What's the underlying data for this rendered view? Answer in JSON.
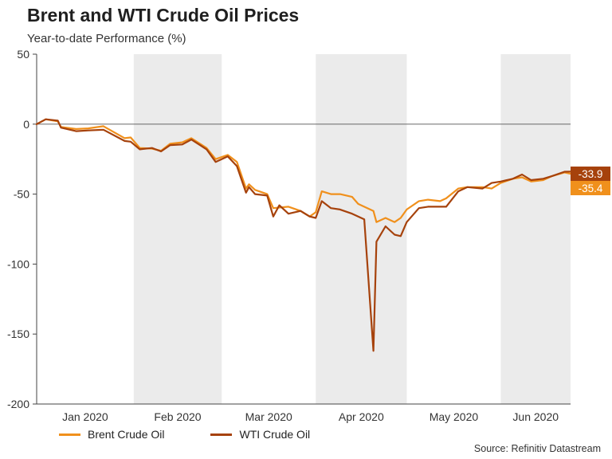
{
  "title": "Brent and WTI Crude Oil Prices",
  "subtitle": "Year-to-date Performance (%)",
  "source": "Source: Refinitiv Datastream",
  "colors": {
    "brent": "#f0901c",
    "wti": "#a6420c",
    "shade": "#ebebeb",
    "axis": "#444444"
  },
  "chart_data": {
    "type": "line",
    "title": "Brent and WTI Crude Oil Prices",
    "subtitle": "Year-to-date Performance (%)",
    "xlabel": "",
    "ylabel": "",
    "ylim": [
      -200,
      50
    ],
    "yticks": [
      50,
      0,
      -50,
      -100,
      -150,
      -200
    ],
    "xlim": [
      "2019-12-31",
      "2020-06-24"
    ],
    "month_labels": [
      "Jan 2020",
      "Feb 2020",
      "Mar 2020",
      "Apr 2020",
      "May 2020",
      "Jun 2020"
    ],
    "shaded_months": [
      "Feb 2020",
      "Apr 2020",
      "Jun 2020"
    ],
    "grid": false,
    "legend_position": "bottom",
    "series": [
      {
        "name": "Brent Crude Oil",
        "end_label": "-35.4",
        "points": [
          [
            "2019-12-31",
            0
          ],
          [
            "2020-01-03",
            3.5
          ],
          [
            "2020-01-07",
            2.0
          ],
          [
            "2020-01-08",
            -2.0
          ],
          [
            "2020-01-13",
            -3.5
          ],
          [
            "2020-01-17",
            -3.0
          ],
          [
            "2020-01-22",
            -1.5
          ],
          [
            "2020-01-29",
            -10.0
          ],
          [
            "2020-01-31",
            -9.5
          ],
          [
            "2020-02-03",
            -17.0
          ],
          [
            "2020-02-07",
            -17.5
          ],
          [
            "2020-02-10",
            -19.0
          ],
          [
            "2020-02-13",
            -14.0
          ],
          [
            "2020-02-17",
            -13.0
          ],
          [
            "2020-02-20",
            -10.0
          ],
          [
            "2020-02-25",
            -17.0
          ],
          [
            "2020-02-28",
            -25.0
          ],
          [
            "2020-03-03",
            -22.0
          ],
          [
            "2020-03-06",
            -27.0
          ],
          [
            "2020-03-09",
            -46.0
          ],
          [
            "2020-03-10",
            -43.0
          ],
          [
            "2020-03-12",
            -47.0
          ],
          [
            "2020-03-16",
            -50.0
          ],
          [
            "2020-03-18",
            -60.0
          ],
          [
            "2020-03-23",
            -59.0
          ],
          [
            "2020-03-27",
            -62.0
          ],
          [
            "2020-03-30",
            -66.0
          ],
          [
            "2020-04-01",
            -63.0
          ],
          [
            "2020-04-03",
            -48.0
          ],
          [
            "2020-04-06",
            -50.0
          ],
          [
            "2020-04-09",
            -50.0
          ],
          [
            "2020-04-13",
            -52.0
          ],
          [
            "2020-04-15",
            -57.0
          ],
          [
            "2020-04-20",
            -62.0
          ],
          [
            "2020-04-21",
            -70.0
          ],
          [
            "2020-04-24",
            -67.0
          ],
          [
            "2020-04-27",
            -70.0
          ],
          [
            "2020-04-29",
            -67.0
          ],
          [
            "2020-05-01",
            -61.0
          ],
          [
            "2020-05-05",
            -55.0
          ],
          [
            "2020-05-08",
            -54.0
          ],
          [
            "2020-05-12",
            -55.0
          ],
          [
            "2020-05-14",
            -53.0
          ],
          [
            "2020-05-18",
            -46.0
          ],
          [
            "2020-05-21",
            -45.0
          ],
          [
            "2020-05-26",
            -45.0
          ],
          [
            "2020-05-29",
            -46.0
          ],
          [
            "2020-06-01",
            -42.0
          ],
          [
            "2020-06-05",
            -39.0
          ],
          [
            "2020-06-08",
            -38.0
          ],
          [
            "2020-06-11",
            -41.0
          ],
          [
            "2020-06-15",
            -40.0
          ],
          [
            "2020-06-18",
            -37.0
          ],
          [
            "2020-06-22",
            -34.5
          ],
          [
            "2020-06-24",
            -35.4
          ]
        ]
      },
      {
        "name": "WTI Crude Oil",
        "end_label": "-33.9",
        "points": [
          [
            "2019-12-31",
            0
          ],
          [
            "2020-01-03",
            3.5
          ],
          [
            "2020-01-07",
            2.5
          ],
          [
            "2020-01-08",
            -2.5
          ],
          [
            "2020-01-13",
            -5.0
          ],
          [
            "2020-01-17",
            -4.5
          ],
          [
            "2020-01-22",
            -4.0
          ],
          [
            "2020-01-29",
            -12.0
          ],
          [
            "2020-01-31",
            -12.5
          ],
          [
            "2020-02-03",
            -18.0
          ],
          [
            "2020-02-07",
            -17.0
          ],
          [
            "2020-02-10",
            -19.5
          ],
          [
            "2020-02-13",
            -15.0
          ],
          [
            "2020-02-17",
            -14.5
          ],
          [
            "2020-02-20",
            -11.0
          ],
          [
            "2020-02-25",
            -18.0
          ],
          [
            "2020-02-28",
            -27.0
          ],
          [
            "2020-03-03",
            -23.0
          ],
          [
            "2020-03-06",
            -30.0
          ],
          [
            "2020-03-09",
            -49.0
          ],
          [
            "2020-03-10",
            -45.0
          ],
          [
            "2020-03-12",
            -50.0
          ],
          [
            "2020-03-16",
            -51.0
          ],
          [
            "2020-03-18",
            -66.0
          ],
          [
            "2020-03-20",
            -58.0
          ],
          [
            "2020-03-23",
            -64.0
          ],
          [
            "2020-03-27",
            -62.0
          ],
          [
            "2020-03-30",
            -66.0
          ],
          [
            "2020-04-01",
            -67.0
          ],
          [
            "2020-04-03",
            -55.0
          ],
          [
            "2020-04-06",
            -60.0
          ],
          [
            "2020-04-09",
            -61.0
          ],
          [
            "2020-04-13",
            -64.0
          ],
          [
            "2020-04-17",
            -68.0
          ],
          [
            "2020-04-20",
            -162.0
          ],
          [
            "2020-04-21",
            -84.0
          ],
          [
            "2020-04-24",
            -73.0
          ],
          [
            "2020-04-27",
            -79.0
          ],
          [
            "2020-04-29",
            -80.0
          ],
          [
            "2020-05-01",
            -70.0
          ],
          [
            "2020-05-05",
            -60.0
          ],
          [
            "2020-05-08",
            -59.0
          ],
          [
            "2020-05-12",
            -59.0
          ],
          [
            "2020-05-14",
            -59.0
          ],
          [
            "2020-05-18",
            -48.0
          ],
          [
            "2020-05-21",
            -45.0
          ],
          [
            "2020-05-26",
            -46.0
          ],
          [
            "2020-05-29",
            -42.0
          ],
          [
            "2020-06-01",
            -41.0
          ],
          [
            "2020-06-05",
            -39.0
          ],
          [
            "2020-06-08",
            -36.0
          ],
          [
            "2020-06-11",
            -40.0
          ],
          [
            "2020-06-15",
            -39.0
          ],
          [
            "2020-06-18",
            -37.0
          ],
          [
            "2020-06-22",
            -34.0
          ],
          [
            "2020-06-24",
            -33.9
          ]
        ]
      }
    ]
  }
}
